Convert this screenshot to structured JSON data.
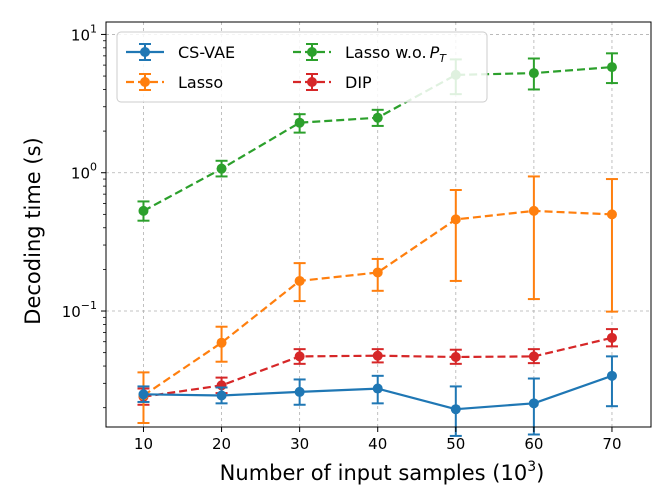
{
  "chart_data": {
    "type": "line",
    "title": "",
    "xlabel": "Number of input samples (10",
    "xlabel_sup": "3",
    "xlabel_close": ")",
    "ylabel": "Decoding time (s)",
    "yscale": "log",
    "ylim": [
      0.0145,
      12.3
    ],
    "xlim": [
      5.2,
      75
    ],
    "grid": true,
    "legend_location": "upper-left",
    "x": [
      10,
      20,
      30,
      40,
      50,
      60,
      70
    ],
    "x_ticks": [
      10,
      20,
      30,
      40,
      50,
      60,
      70
    ],
    "y_ticks": [
      {
        "value": 10,
        "base": "10",
        "exp": "1"
      },
      {
        "value": 1,
        "base": "10",
        "exp": "0"
      },
      {
        "value": 0.1,
        "base": "10",
        "exp": "−1"
      }
    ],
    "series": [
      {
        "name": "CS-VAE",
        "color": "#1f77b4",
        "linestyle": "solid",
        "values": [
          0.025,
          0.0245,
          0.026,
          0.0275,
          0.0195,
          0.0215,
          0.034
        ],
        "err_low": [
          0.022,
          0.0215,
          0.021,
          0.0215,
          0.0125,
          0.0128,
          0.0205
        ],
        "err_high": [
          0.0285,
          0.028,
          0.032,
          0.034,
          0.0285,
          0.0325,
          0.047
        ]
      },
      {
        "name": "Lasso",
        "color": "#ff7f0e",
        "linestyle": "dashed",
        "values": [
          0.0245,
          0.059,
          0.165,
          0.19,
          0.46,
          0.53,
          0.5
        ],
        "err_low": [
          0.0155,
          0.043,
          0.118,
          0.14,
          0.165,
          0.122,
          0.099
        ],
        "err_high": [
          0.036,
          0.077,
          0.222,
          0.238,
          0.75,
          0.94,
          0.9
        ]
      },
      {
        "name": "Lasso w.o.",
        "name_sym": "P",
        "name_sub": "T",
        "color": "#2ca02c",
        "linestyle": "dashed",
        "values": [
          0.53,
          1.07,
          2.3,
          2.5,
          5.1,
          5.25,
          5.8
        ],
        "err_low": [
          0.45,
          0.94,
          1.95,
          2.18,
          3.7,
          4.0,
          4.45
        ],
        "err_high": [
          0.62,
          1.22,
          2.65,
          2.85,
          6.6,
          6.7,
          7.3
        ]
      },
      {
        "name": "DIP",
        "color": "#d62728",
        "linestyle": "dashed",
        "values": [
          0.024,
          0.029,
          0.047,
          0.0475,
          0.0465,
          0.047,
          0.064
        ],
        "err_low": [
          0.021,
          0.0255,
          0.0415,
          0.0425,
          0.0415,
          0.042,
          0.0555
        ],
        "err_high": [
          0.0275,
          0.033,
          0.053,
          0.053,
          0.0525,
          0.053,
          0.074
        ]
      }
    ]
  }
}
